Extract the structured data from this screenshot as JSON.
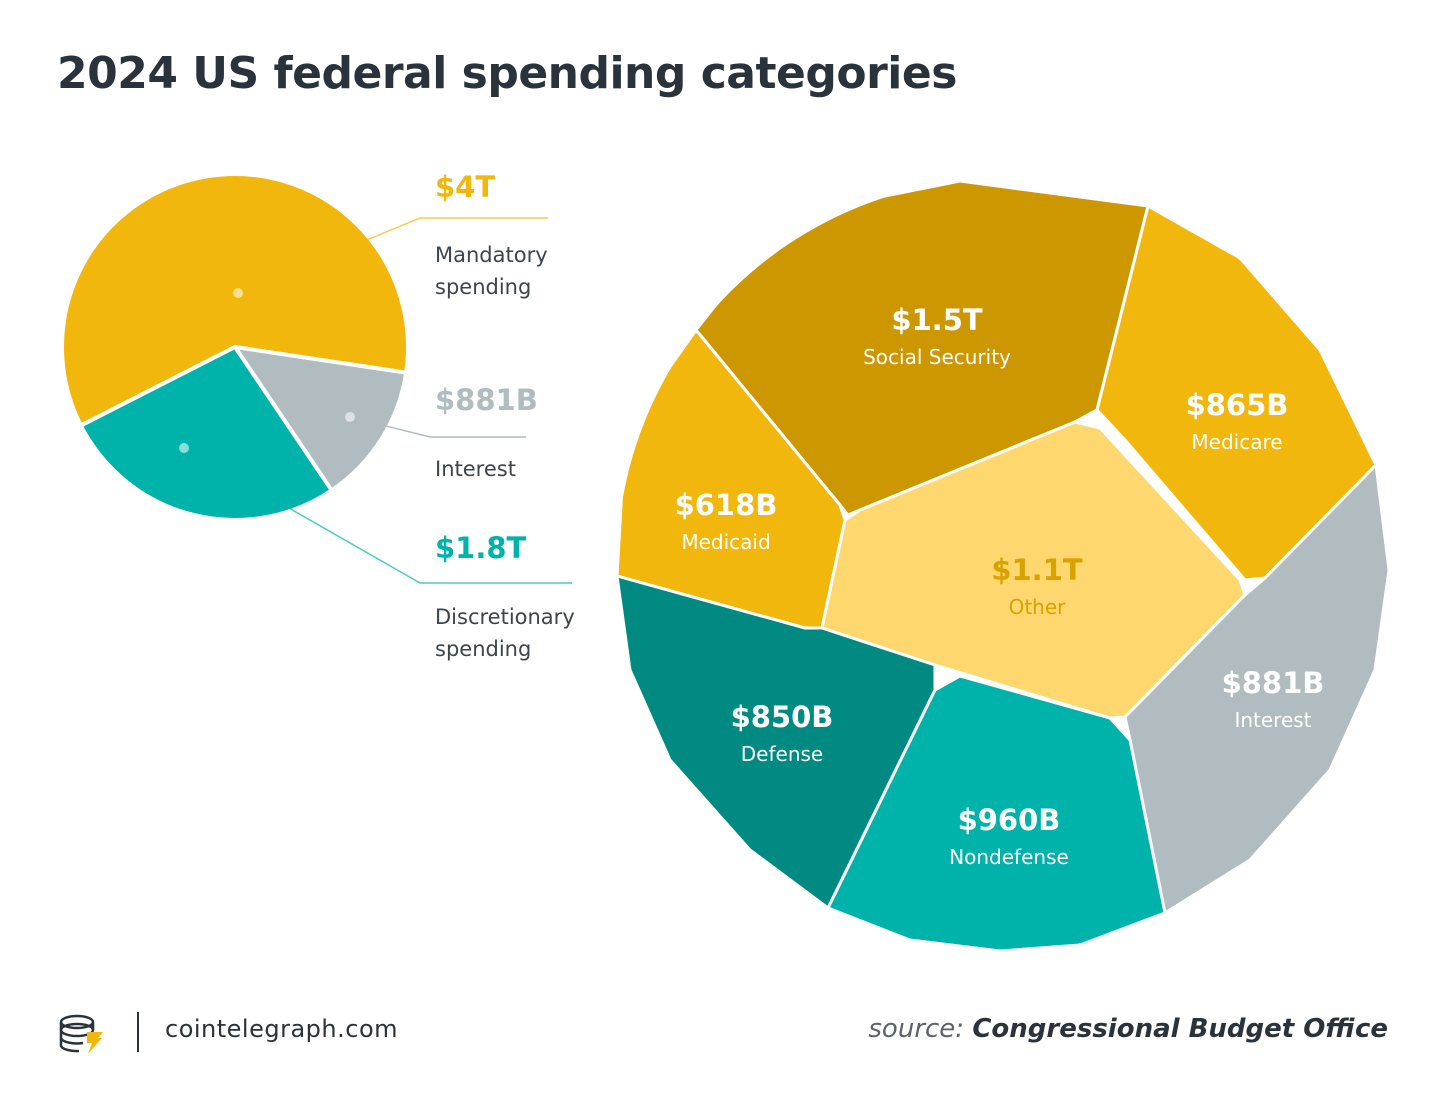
{
  "title": "2024 US federal spending categories",
  "chart_data": [
    {
      "type": "pie",
      "title": "2024 US federal spending categories",
      "slices": [
        {
          "value_label": "$4T",
          "label_lines": [
            "Mandatory",
            "spending"
          ],
          "value": 4.0,
          "unit": "trillion USD",
          "color": "#f2b70d",
          "label_color": "#f2b70d"
        },
        {
          "value_label": "$881B",
          "label_lines": [
            "Interest"
          ],
          "value": 0.881,
          "unit": "trillion USD",
          "color": "#b1bcc1",
          "label_color": "#b1bcc1"
        },
        {
          "value_label": "$1.8T",
          "label_lines": [
            "Discretionary",
            "spending"
          ],
          "value": 1.8,
          "unit": "trillion USD",
          "color": "#00b3aa",
          "label_color": "#00b3aa"
        }
      ]
    },
    {
      "type": "voronoi-treemap",
      "cells": [
        {
          "value_label": "$1.5T",
          "name": "Social Security",
          "value": 1500,
          "unit": "billion USD",
          "color": "#cc9700",
          "text_color": "#ffffff"
        },
        {
          "value_label": "$865B",
          "name": "Medicare",
          "value": 865,
          "unit": "billion USD",
          "color": "#f2b70d",
          "text_color": "#ffffff"
        },
        {
          "value_label": "$618B",
          "name": "Medicaid",
          "value": 618,
          "unit": "billion USD",
          "color": "#f2b70d",
          "text_color": "#ffffff"
        },
        {
          "value_label": "$1.1T",
          "name": "Other",
          "value": 1100,
          "unit": "billion USD",
          "color": "#fed86e",
          "text_color": "#d9a200"
        },
        {
          "value_label": "$881B",
          "name": "Interest",
          "value": 881,
          "unit": "billion USD",
          "color": "#b1bcc1",
          "text_color": "#ffffff"
        },
        {
          "value_label": "$850B",
          "name": "Defense",
          "value": 850,
          "unit": "billion USD",
          "color": "#008a82",
          "text_color": "#ffffff"
        },
        {
          "value_label": "$960B",
          "name": "Nondefense",
          "value": 960,
          "unit": "billion USD",
          "color": "#00b3aa",
          "text_color": "#ffffff"
        }
      ]
    }
  ],
  "footer": {
    "site": "cointelegraph.com",
    "source_label": "source:",
    "source_name": "Congressional Budget Office"
  }
}
